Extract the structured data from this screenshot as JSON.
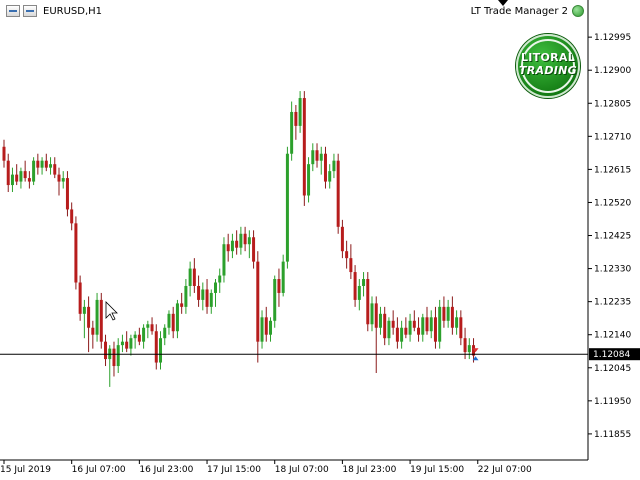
{
  "window": {
    "symbol_title": "EURUSD,H1",
    "expert_name": "LT Trade Manager 2"
  },
  "logo": {
    "line1": "LITORAL",
    "line2": "TRADING"
  },
  "colors": {
    "bull": "#2ca02c",
    "bear": "#b71c1c",
    "wick_bull": "#2ca02c",
    "wick_bear": "#8b1a1a",
    "axis": "#000000",
    "price_line": "#000000",
    "price_tag_bg": "#000000"
  },
  "chart_data": {
    "type": "candlestick",
    "symbol": "EURUSD",
    "timeframe": "H1",
    "current_price": 1.12084,
    "current_price_label": "1.12084",
    "y_ticks": [
      "1.12995",
      "1.12900",
      "1.12805",
      "1.12710",
      "1.12615",
      "1.12520",
      "1.12425",
      "1.12330",
      "1.12235",
      "1.12140",
      "1.12045",
      "1.11950",
      "1.11855"
    ],
    "ylim": [
      1.1178,
      1.1305
    ],
    "x_ticks": [
      "15 Jul 2019",
      "16 Jul 07:00",
      "16 Jul 23:00",
      "17 Jul 15:00",
      "18 Jul 07:00",
      "18 Jul 23:00",
      "19 Jul 15:00",
      "22 Jul 07:00"
    ],
    "x_tick_bar_index": [
      0,
      16,
      32,
      48,
      64,
      80,
      96,
      112
    ],
    "candles_ohlc": [
      [
        1.1268,
        1.127,
        1.1262,
        1.1264
      ],
      [
        1.1264,
        1.1266,
        1.1255,
        1.1257
      ],
      [
        1.1257,
        1.1262,
        1.1255,
        1.126
      ],
      [
        1.126,
        1.1263,
        1.1257,
        1.1258
      ],
      [
        1.1258,
        1.1262,
        1.1256,
        1.1261
      ],
      [
        1.1261,
        1.1264,
        1.1258,
        1.1259
      ],
      [
        1.1259,
        1.1261,
        1.1256,
        1.1258
      ],
      [
        1.1258,
        1.1265,
        1.1257,
        1.1264
      ],
      [
        1.1264,
        1.1266,
        1.126,
        1.1262
      ],
      [
        1.1262,
        1.1265,
        1.126,
        1.1264
      ],
      [
        1.1264,
        1.1266,
        1.1261,
        1.1262
      ],
      [
        1.1262,
        1.1265,
        1.126,
        1.1263
      ],
      [
        1.1263,
        1.1265,
        1.1259,
        1.126
      ],
      [
        1.126,
        1.1262,
        1.1254,
        1.1258
      ],
      [
        1.1258,
        1.1261,
        1.1256,
        1.1259
      ],
      [
        1.1259,
        1.1261,
        1.1248,
        1.125
      ],
      [
        1.125,
        1.1252,
        1.1244,
        1.1246
      ],
      [
        1.1246,
        1.1248,
        1.1227,
        1.1229
      ],
      [
        1.1229,
        1.1231,
        1.1218,
        1.122
      ],
      [
        1.122,
        1.1224,
        1.1213,
        1.1222
      ],
      [
        1.1222,
        1.1225,
        1.1209,
        1.1216
      ],
      [
        1.1216,
        1.1218,
        1.121,
        1.1214
      ],
      [
        1.1214,
        1.1226,
        1.1212,
        1.1224
      ],
      [
        1.1224,
        1.1226,
        1.121,
        1.1212
      ],
      [
        1.1212,
        1.1214,
        1.1205,
        1.1207
      ],
      [
        1.1207,
        1.1211,
        1.1199,
        1.121
      ],
      [
        1.121,
        1.1212,
        1.1202,
        1.1205
      ],
      [
        1.1205,
        1.1213,
        1.1203,
        1.1211
      ],
      [
        1.1211,
        1.1214,
        1.1209,
        1.1212
      ],
      [
        1.1212,
        1.1215,
        1.1209,
        1.121
      ],
      [
        1.121,
        1.1214,
        1.1208,
        1.1213
      ],
      [
        1.1213,
        1.1215,
        1.121,
        1.1214
      ],
      [
        1.1214,
        1.1216,
        1.1211,
        1.1212
      ],
      [
        1.1212,
        1.1217,
        1.121,
        1.1216
      ],
      [
        1.1216,
        1.1218,
        1.1213,
        1.1217
      ],
      [
        1.1217,
        1.1219,
        1.1214,
        1.1215
      ],
      [
        1.1215,
        1.1217,
        1.1204,
        1.1206
      ],
      [
        1.1206,
        1.1215,
        1.1204,
        1.1213
      ],
      [
        1.1213,
        1.1217,
        1.1211,
        1.1216
      ],
      [
        1.1216,
        1.1221,
        1.1214,
        1.122
      ],
      [
        1.122,
        1.1222,
        1.1213,
        1.1215
      ],
      [
        1.1215,
        1.1224,
        1.1213,
        1.1223
      ],
      [
        1.1223,
        1.1226,
        1.122,
        1.1222
      ],
      [
        1.1222,
        1.123,
        1.122,
        1.1228
      ],
      [
        1.1228,
        1.1235,
        1.1225,
        1.1233
      ],
      [
        1.1233,
        1.1236,
        1.1226,
        1.1228
      ],
      [
        1.1228,
        1.1231,
        1.1222,
        1.1224
      ],
      [
        1.1224,
        1.1229,
        1.1221,
        1.1227
      ],
      [
        1.1227,
        1.123,
        1.122,
        1.1222
      ],
      [
        1.1222,
        1.1227,
        1.122,
        1.1226
      ],
      [
        1.1226,
        1.123,
        1.1222,
        1.1229
      ],
      [
        1.1229,
        1.1233,
        1.1226,
        1.1231
      ],
      [
        1.1231,
        1.1242,
        1.1229,
        1.124
      ],
      [
        1.124,
        1.1243,
        1.1235,
        1.1238
      ],
      [
        1.1238,
        1.1243,
        1.1236,
        1.1241
      ],
      [
        1.1241,
        1.1244,
        1.1237,
        1.1239
      ],
      [
        1.1239,
        1.1245,
        1.1237,
        1.1243
      ],
      [
        1.1243,
        1.1245,
        1.1238,
        1.124
      ],
      [
        1.124,
        1.1244,
        1.1236,
        1.1242
      ],
      [
        1.1242,
        1.1244,
        1.1233,
        1.1235
      ],
      [
        1.1235,
        1.1238,
        1.1206,
        1.1212
      ],
      [
        1.1212,
        1.1221,
        1.121,
        1.1219
      ],
      [
        1.1219,
        1.1222,
        1.1212,
        1.1214
      ],
      [
        1.1214,
        1.1219,
        1.1212,
        1.1218
      ],
      [
        1.1218,
        1.1231,
        1.1216,
        1.123
      ],
      [
        1.123,
        1.1233,
        1.1222,
        1.1226
      ],
      [
        1.1226,
        1.1237,
        1.1225,
        1.1235
      ],
      [
        1.1235,
        1.1268,
        1.1233,
        1.1266
      ],
      [
        1.1266,
        1.1281,
        1.1264,
        1.1278
      ],
      [
        1.1278,
        1.128,
        1.127,
        1.1274
      ],
      [
        1.1274,
        1.1284,
        1.1272,
        1.1282
      ],
      [
        1.1282,
        1.1284,
        1.1251,
        1.1254
      ],
      [
        1.1254,
        1.1265,
        1.1252,
        1.1263
      ],
      [
        1.1263,
        1.1269,
        1.1261,
        1.1267
      ],
      [
        1.1267,
        1.1269,
        1.1262,
        1.1264
      ],
      [
        1.1264,
        1.1268,
        1.126,
        1.1266
      ],
      [
        1.1266,
        1.1268,
        1.1256,
        1.1258
      ],
      [
        1.1258,
        1.1263,
        1.1256,
        1.1261
      ],
      [
        1.1261,
        1.1266,
        1.1259,
        1.1264
      ],
      [
        1.1264,
        1.1266,
        1.1243,
        1.1245
      ],
      [
        1.1245,
        1.1247,
        1.1236,
        1.1238
      ],
      [
        1.1238,
        1.1241,
        1.1233,
        1.1236
      ],
      [
        1.1236,
        1.124,
        1.123,
        1.1232
      ],
      [
        1.1232,
        1.1234,
        1.1222,
        1.1224
      ],
      [
        1.1224,
        1.123,
        1.1221,
        1.1228
      ],
      [
        1.1228,
        1.1232,
        1.1225,
        1.123
      ],
      [
        1.123,
        1.1232,
        1.1215,
        1.1217
      ],
      [
        1.1217,
        1.1225,
        1.1215,
        1.1223
      ],
      [
        1.1223,
        1.1225,
        1.1203,
        1.1216
      ],
      [
        1.1216,
        1.1222,
        1.1214,
        1.122
      ],
      [
        1.122,
        1.1222,
        1.1211,
        1.1213
      ],
      [
        1.1213,
        1.1219,
        1.1211,
        1.1218
      ],
      [
        1.1218,
        1.1221,
        1.1214,
        1.1216
      ],
      [
        1.1216,
        1.1219,
        1.121,
        1.1212
      ],
      [
        1.1212,
        1.1218,
        1.121,
        1.1216
      ],
      [
        1.1216,
        1.1219,
        1.1213,
        1.1214
      ],
      [
        1.1214,
        1.122,
        1.1212,
        1.1218
      ],
      [
        1.1218,
        1.1221,
        1.1215,
        1.1216
      ],
      [
        1.1216,
        1.1219,
        1.1212,
        1.1214
      ],
      [
        1.1214,
        1.122,
        1.1212,
        1.1219
      ],
      [
        1.1219,
        1.1222,
        1.1214,
        1.1215
      ],
      [
        1.1215,
        1.1221,
        1.1213,
        1.1219
      ],
      [
        1.1219,
        1.1222,
        1.121,
        1.1212
      ],
      [
        1.1212,
        1.1224,
        1.121,
        1.1222
      ],
      [
        1.1222,
        1.1225,
        1.1216,
        1.1218
      ],
      [
        1.1218,
        1.1224,
        1.1216,
        1.1222
      ],
      [
        1.1222,
        1.1225,
        1.1214,
        1.1216
      ],
      [
        1.1216,
        1.1221,
        1.1214,
        1.1219
      ],
      [
        1.1219,
        1.1221,
        1.1211,
        1.1213
      ],
      [
        1.1213,
        1.1216,
        1.1207,
        1.1209
      ],
      [
        1.1209,
        1.1213,
        1.1207,
        1.1211
      ],
      [
        1.1211,
        1.1213,
        1.1206,
        1.1208
      ]
    ]
  }
}
